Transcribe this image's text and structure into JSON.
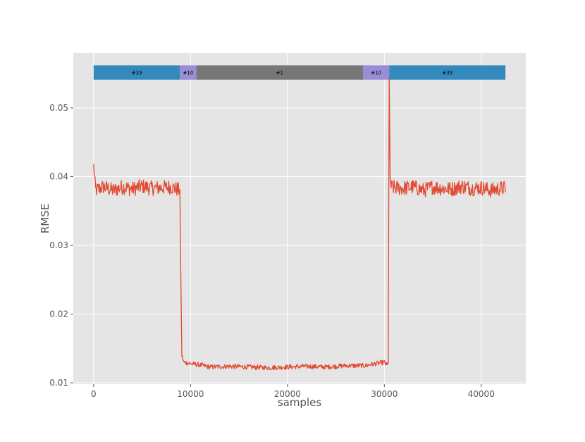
{
  "chart_data": {
    "type": "line",
    "title": "",
    "xlabel": "samples",
    "ylabel": "RMSE",
    "xlim": [
      -2100,
      44600
    ],
    "ylim": [
      0.0098,
      0.058
    ],
    "grid": true,
    "legend": "none",
    "x_ticks": [
      {
        "value": 0,
        "label": "0"
      },
      {
        "value": 10000,
        "label": "10000"
      },
      {
        "value": 20000,
        "label": "20000"
      },
      {
        "value": 30000,
        "label": "30000"
      },
      {
        "value": 40000,
        "label": "40000"
      }
    ],
    "y_ticks": [
      {
        "value": 0.01,
        "label": "0.01"
      },
      {
        "value": 0.02,
        "label": "0.02"
      },
      {
        "value": 0.03,
        "label": "0.03"
      },
      {
        "value": 0.04,
        "label": "0.04"
      },
      {
        "value": 0.05,
        "label": "0.05"
      }
    ],
    "segments_band": {
      "y_range": [
        0.0541,
        0.0562
      ],
      "segments": [
        {
          "label": "#39",
          "x_start": 0,
          "x_end": 8900,
          "color": "#348ABD"
        },
        {
          "label": "#10",
          "x_start": 8900,
          "x_end": 10600,
          "color": "#988ED5"
        },
        {
          "label": "#1",
          "x_start": 10600,
          "x_end": 27800,
          "color": "#777777"
        },
        {
          "label": "#10",
          "x_start": 27800,
          "x_end": 30500,
          "color": "#988ED5"
        },
        {
          "label": "#39",
          "x_start": 30500,
          "x_end": 42500,
          "color": "#348ABD"
        }
      ]
    },
    "series": [
      {
        "color": "#E24A33",
        "x": [
          0,
          200,
          1000,
          2000,
          3000,
          4000,
          5000,
          6000,
          7000,
          8000,
          8900,
          9000,
          9100,
          9300,
          10000,
          11000,
          12000,
          14000,
          16000,
          18000,
          20000,
          22000,
          24000,
          26000,
          28000,
          30000,
          30300,
          30400,
          30500,
          30600,
          30700,
          31000,
          32000,
          33000,
          34000,
          35000,
          36000,
          37000,
          38000,
          39000,
          40000,
          41000,
          42000,
          42500
        ],
        "y": [
          0.0415,
          0.038,
          0.0385,
          0.038,
          0.0385,
          0.0382,
          0.0386,
          0.0383,
          0.0384,
          0.0385,
          0.038,
          0.025,
          0.014,
          0.013,
          0.0128,
          0.0126,
          0.0123,
          0.0124,
          0.0123,
          0.0122,
          0.0123,
          0.0124,
          0.0123,
          0.0125,
          0.0125,
          0.013,
          0.0125,
          0.013,
          0.0545,
          0.04,
          0.0385,
          0.0384,
          0.0383,
          0.0385,
          0.038,
          0.0385,
          0.0383,
          0.0382,
          0.0386,
          0.0383,
          0.0384,
          0.038,
          0.0383,
          0.0383
        ]
      }
    ]
  }
}
